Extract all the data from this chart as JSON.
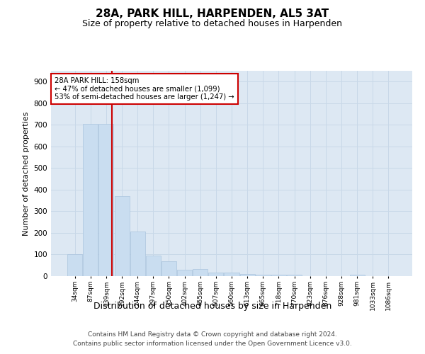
{
  "title1": "28A, PARK HILL, HARPENDEN, AL5 3AT",
  "title2": "Size of property relative to detached houses in Harpenden",
  "xlabel": "Distribution of detached houses by size in Harpenden",
  "ylabel": "Number of detached properties",
  "footer1": "Contains HM Land Registry data © Crown copyright and database right 2024.",
  "footer2": "Contains public sector information licensed under the Open Government Licence v3.0.",
  "bins": [
    "34sqm",
    "87sqm",
    "139sqm",
    "192sqm",
    "244sqm",
    "297sqm",
    "350sqm",
    "402sqm",
    "455sqm",
    "507sqm",
    "560sqm",
    "613sqm",
    "665sqm",
    "718sqm",
    "770sqm",
    "823sqm",
    "876sqm",
    "928sqm",
    "981sqm",
    "1033sqm",
    "1086sqm"
  ],
  "values": [
    100,
    705,
    705,
    370,
    205,
    95,
    70,
    30,
    32,
    18,
    18,
    10,
    5,
    5,
    5,
    0,
    0,
    0,
    5,
    0,
    0
  ],
  "bar_color": "#c9ddf0",
  "bar_edge_color": "#aac4dd",
  "grid_color": "#c8d8e8",
  "bg_color": "#dde8f3",
  "vline_color": "#cc0000",
  "annotation_line1": "28A PARK HILL: 158sqm",
  "annotation_line2": "← 47% of detached houses are smaller (1,099)",
  "annotation_line3": "53% of semi-detached houses are larger (1,247) →",
  "annotation_box_color": "#cc0000",
  "ylim": [
    0,
    950
  ],
  "yticks": [
    0,
    100,
    200,
    300,
    400,
    500,
    600,
    700,
    800,
    900
  ],
  "title1_fontsize": 11,
  "title2_fontsize": 9,
  "ylabel_fontsize": 8,
  "xlabel_fontsize": 9,
  "footer_fontsize": 6.5
}
